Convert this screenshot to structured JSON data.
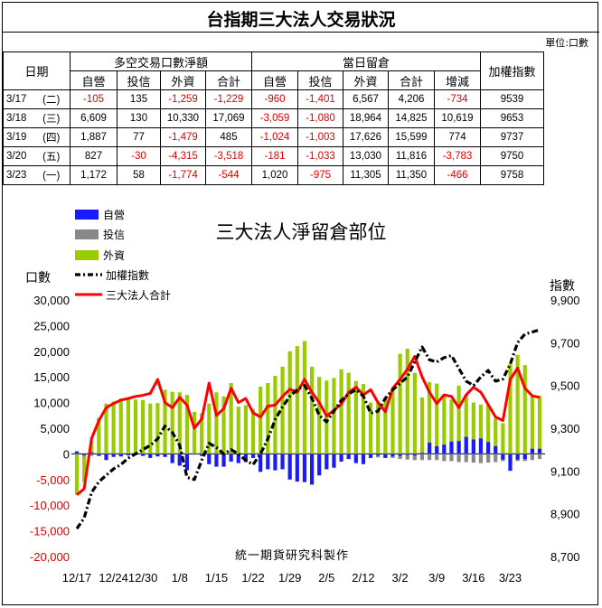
{
  "title": "台指期三大法人交易狀況",
  "unit": "單位:口數",
  "table": {
    "col_date": "日期",
    "group1": "多空交易口數淨額",
    "group2": "當日留倉",
    "col_index": "加權指數",
    "sub1": [
      "自營",
      "投信",
      "外資",
      "合計"
    ],
    "sub2": [
      "自營",
      "投信",
      "外資",
      "合計",
      "增減"
    ],
    "rows": [
      {
        "date": "3/17",
        "dow": "(二)",
        "v": [
          "-105",
          "135",
          "-1,259",
          "-1,229",
          "-960",
          "-1,401",
          "6,567",
          "4,206",
          "-734",
          "9539"
        ]
      },
      {
        "date": "3/18",
        "dow": "(三)",
        "v": [
          "6,609",
          "130",
          "10,330",
          "17,069",
          "-3,059",
          "-1,080",
          "18,964",
          "14,825",
          "10,619",
          "9653"
        ]
      },
      {
        "date": "3/19",
        "dow": "(四)",
        "v": [
          "1,887",
          "77",
          "-1,479",
          "485",
          "-1,024",
          "-1,003",
          "17,626",
          "15,599",
          "774",
          "9737"
        ]
      },
      {
        "date": "3/20",
        "dow": "(五)",
        "v": [
          "827",
          "-30",
          "-4,315",
          "-3,518",
          "-181",
          "-1,033",
          "13,030",
          "11,816",
          "-3,783",
          "9750"
        ]
      },
      {
        "date": "3/23",
        "dow": "(一)",
        "v": [
          "1,172",
          "58",
          "-1,774",
          "-544",
          "1,020",
          "-975",
          "11,305",
          "11,350",
          "-466",
          "9758"
        ]
      }
    ]
  },
  "chart_data": {
    "type": "bar",
    "title": "三大法人淨留倉部位",
    "ylabel_left": "口數",
    "ylabel_right": "指數",
    "ylim_left": [
      -20000,
      30000
    ],
    "ylim_right": [
      8700,
      9900
    ],
    "yticks_left": [
      "30,000",
      "25,000",
      "20,000",
      "15,000",
      "10,000",
      "5,000",
      "0",
      "-5,000",
      "-10,000",
      "-15,000",
      "-20,000"
    ],
    "yticks_right": [
      "9,900",
      "9,700",
      "9,500",
      "9,300",
      "9,100",
      "8,900",
      "8,700"
    ],
    "xtick_labels": [
      "12/17",
      "12/24",
      "12/30",
      "1/8",
      "1/15",
      "1/22",
      "1/29",
      "2/5",
      "2/12",
      "3/2",
      "3/9",
      "3/16",
      "3/23"
    ],
    "xtick_positions": [
      0,
      5,
      9,
      14,
      19,
      24,
      29,
      34,
      39,
      44,
      49,
      54,
      59
    ],
    "watermark": "統一期貨研究科製作",
    "legend": [
      "自營",
      "投信",
      "外資",
      "加權指數",
      "三大法人合計"
    ],
    "colors": {
      "prop": "#1a1aff",
      "trust": "#888888",
      "foreign": "#99cc00",
      "index": "#000000",
      "total": "#ff0000"
    },
    "series": [
      {
        "name": "自營",
        "values": [
          500,
          -200,
          300,
          -400,
          -1200,
          -600,
          -500,
          -300,
          -200,
          -400,
          -800,
          -500,
          -600,
          -1800,
          -2300,
          -3200,
          100,
          -400,
          -2000,
          -2500,
          -2500,
          -1500,
          -1800,
          -1600,
          -800,
          -3500,
          -3000,
          -3200,
          -3000,
          -5000,
          -5400,
          -5500,
          -6000,
          -4200,
          -3000,
          -2700,
          -1500,
          -1000,
          -1800,
          -2000,
          -800,
          -300,
          -800,
          -500,
          -400,
          -200,
          -300,
          200,
          2200,
          1500,
          1800,
          2400,
          2500,
          3300,
          2800,
          3000,
          2300,
          1500,
          -1100,
          -3300,
          -1100,
          -1000,
          1000,
          1000
        ]
      },
      {
        "name": "投信",
        "values": [
          200,
          -500,
          -400,
          -300,
          -300,
          -200,
          -200,
          -200,
          -200,
          -200,
          -200,
          -300,
          -300,
          -300,
          -300,
          -200,
          -200,
          -200,
          -200,
          -200,
          -100,
          -100,
          -100,
          -100,
          -200,
          -200,
          -300,
          -200,
          -200,
          -300,
          -400,
          -400,
          -500,
          -400,
          -500,
          -400,
          -400,
          -400,
          -400,
          -500,
          -600,
          -700,
          -700,
          -800,
          -1000,
          -1100,
          -1200,
          -1200,
          -1200,
          -1200,
          -1400,
          -1400,
          -1600,
          -1600,
          -1700,
          -1800,
          -1700,
          -1600,
          -1400,
          -1300,
          -1400,
          -1400,
          -1200,
          -1000
        ]
      },
      {
        "name": "外資",
        "values": [
          -8000,
          -5500,
          2500,
          7000,
          9800,
          10200,
          10800,
          11000,
          10600,
          10500,
          9800,
          9900,
          12500,
          12100,
          12000,
          11500,
          8200,
          7900,
          9800,
          12000,
          11200,
          13800,
          9200,
          9500,
          8800,
          13100,
          13800,
          15200,
          17000,
          20000,
          21000,
          22000,
          17000,
          15000,
          14300,
          14800,
          16500,
          15800,
          14200,
          13600,
          10000,
          9900,
          11000,
          12500,
          19500,
          20500,
          15800,
          11000,
          14000,
          13700,
          11500,
          10600,
          13300,
          11500,
          10000,
          9600,
          9600,
          6900,
          6000,
          17500,
          19300,
          17300,
          11300,
          11300
        ]
      },
      {
        "name": "三大法人合計",
        "values": [
          -8000,
          -6800,
          3000,
          6500,
          9000,
          9800,
          10500,
          10800,
          11200,
          11400,
          11800,
          14500,
          10000,
          9000,
          11000,
          9500,
          5000,
          6800,
          13800,
          7500,
          8800,
          12800,
          10000,
          10800,
          8000,
          7200,
          9300,
          9500,
          11200,
          12600,
          12000,
          14500,
          12000,
          10000,
          7400,
          8500,
          9700,
          12000,
          13000,
          11500,
          12500,
          10000,
          8200,
          12800,
          14500,
          16500,
          19000,
          15000,
          12000,
          9800,
          11500,
          11200,
          9000,
          11500,
          13000,
          12000,
          9600,
          7200,
          6500,
          14500,
          16700,
          12800,
          11300,
          11000
        ]
      },
      {
        "name": "加權指數",
        "values": [
          8830,
          8880,
          9000,
          9050,
          9080,
          9110,
          9130,
          9160,
          9180,
          9200,
          9220,
          9250,
          9310,
          9280,
          9220,
          9070,
          9060,
          9150,
          9230,
          9210,
          9180,
          9200,
          9180,
          9150,
          9130,
          9180,
          9250,
          9340,
          9400,
          9450,
          9480,
          9500,
          9440,
          9360,
          9330,
          9380,
          9430,
          9460,
          9480,
          9450,
          9370,
          9380,
          9440,
          9480,
          9510,
          9540,
          9610,
          9680,
          9620,
          9610,
          9630,
          9640,
          9580,
          9520,
          9500,
          9540,
          9570,
          9520,
          9530,
          9600,
          9700,
          9740,
          9750,
          9760
        ]
      }
    ]
  }
}
